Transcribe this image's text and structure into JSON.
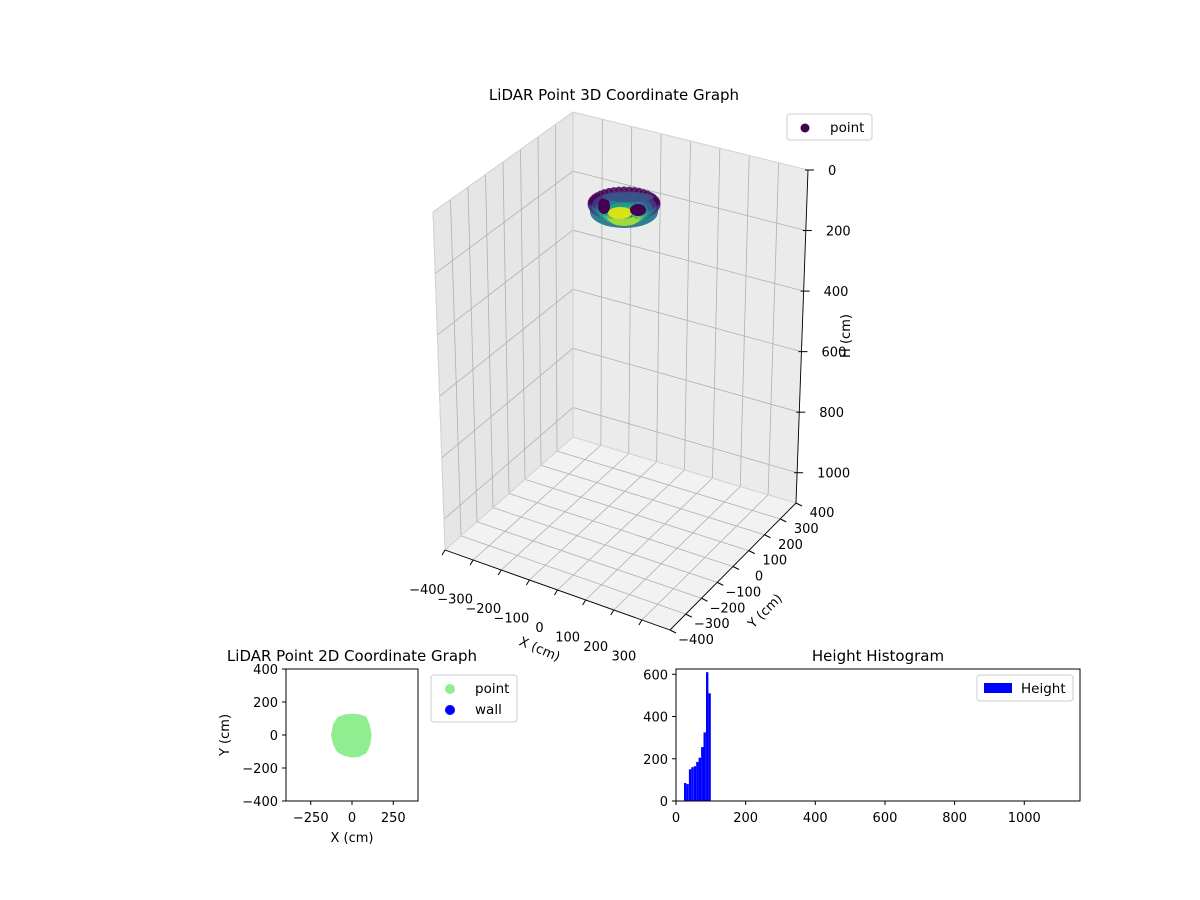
{
  "chart_data": [
    {
      "type": "scatter3d",
      "title": "LiDAR Point 3D Coordinate Graph",
      "xlabel": "X (cm)",
      "ylabel": "Y (cm)",
      "zlabel": "H (cm)",
      "xlim": [
        -400,
        400
      ],
      "ylim": [
        -400,
        400
      ],
      "zlim": [
        0,
        1100
      ],
      "z_inverted": true,
      "x_ticks": [
        "−400",
        "−300",
        "−200",
        "−100",
        "0",
        "100",
        "200",
        "300"
      ],
      "y_ticks": [
        "−400",
        "−300",
        "−200",
        "−100",
        "0",
        "100",
        "200",
        "300",
        "400"
      ],
      "z_ticks": [
        "0",
        "200",
        "400",
        "600",
        "800",
        "1000"
      ],
      "colormap": "viridis",
      "grid": true,
      "legend": {
        "placement": "top-right",
        "entries": [
          {
            "name": "point",
            "color": "#440154"
          }
        ]
      },
      "cluster": {
        "center_x": 0,
        "center_y": 0,
        "radius": 120,
        "h_min": 20,
        "h_max": 100
      }
    },
    {
      "type": "scatter",
      "title": "LiDAR Point 2D Coordinate Graph",
      "xlabel": "X (cm)",
      "ylabel": "Y (cm)",
      "xlim": [
        -400,
        400
      ],
      "ylim": [
        -400,
        400
      ],
      "x_ticks": [
        "−250",
        "0",
        "250"
      ],
      "x_tick_values": [
        -250,
        0,
        250
      ],
      "y_ticks": [
        "−400",
        "−200",
        "0",
        "200",
        "400"
      ],
      "y_tick_values": [
        -400,
        -200,
        0,
        200,
        400
      ],
      "grid": false,
      "legend": {
        "placement": "outside-right",
        "entries": [
          {
            "name": "point",
            "color": "#90ee90"
          },
          {
            "name": "wall",
            "color": "#0000ff"
          }
        ]
      },
      "series": [
        {
          "name": "point",
          "color": "#90ee90",
          "outline": [
            [
              0,
              120
            ],
            [
              40,
              117
            ],
            [
              80,
              104
            ],
            [
              98,
              62
            ],
            [
              110,
              0
            ],
            [
              102,
              -58
            ],
            [
              80,
              -105
            ],
            [
              40,
              -124
            ],
            [
              0,
              -127
            ],
            [
              -40,
              -120
            ],
            [
              -82,
              -98
            ],
            [
              -105,
              -58
            ],
            [
              -118,
              0
            ],
            [
              -106,
              62
            ],
            [
              -80,
              102
            ],
            [
              -40,
              116
            ]
          ]
        },
        {
          "name": "wall",
          "color": "#0000ff",
          "outline": []
        }
      ]
    },
    {
      "type": "bar",
      "title": "Height Histogram",
      "xlim": [
        0,
        1160
      ],
      "ylim": [
        0,
        625
      ],
      "x_ticks": [
        "0",
        "200",
        "400",
        "600",
        "800",
        "1000"
      ],
      "x_tick_values": [
        0,
        200,
        400,
        600,
        800,
        1000
      ],
      "y_ticks": [
        "0",
        "200",
        "400",
        "600"
      ],
      "y_tick_values": [
        0,
        200,
        400,
        600
      ],
      "color": "#0000ff",
      "bin_width": 7,
      "grid": false,
      "legend": {
        "placement": "top-right",
        "entries": [
          {
            "name": "Height",
            "color": "#0000ff"
          }
        ]
      },
      "series": [
        {
          "name": "Height",
          "bins": [
            [
              23,
              85
            ],
            [
              30,
              80
            ],
            [
              37,
              150
            ],
            [
              44,
              160
            ],
            [
              51,
              165
            ],
            [
              58,
              185
            ],
            [
              65,
              205
            ],
            [
              72,
              255
            ],
            [
              79,
              325
            ],
            [
              86,
              610
            ],
            [
              93,
              510
            ]
          ]
        }
      ]
    }
  ]
}
